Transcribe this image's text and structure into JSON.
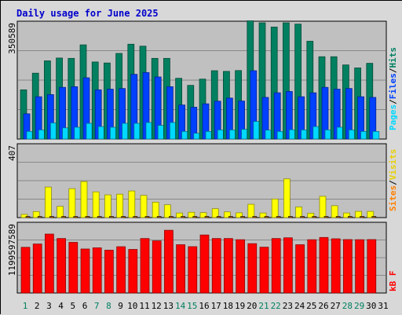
{
  "chart_data": [
    {
      "type": "bar",
      "title": "Daily usage for June 2025",
      "panel": "top",
      "axis_max_label": "350589",
      "ylim": [
        0,
        350589
      ],
      "grid": true,
      "categories": [
        "1",
        "2",
        "3",
        "4",
        "5",
        "6",
        "7",
        "8",
        "9",
        "10",
        "11",
        "12",
        "13",
        "14",
        "15",
        "16",
        "17",
        "18",
        "19",
        "20",
        "21",
        "22",
        "23",
        "24",
        "25",
        "26",
        "27",
        "28",
        "29",
        "30",
        "31"
      ],
      "series": [
        {
          "name": "Pages",
          "values": [
            23000,
            27600,
            48900,
            33900,
            35800,
            47600,
            37800,
            35800,
            47600,
            47600,
            50200,
            41400,
            50200,
            23000,
            17500,
            23000,
            27600,
            27600,
            29500,
            53300,
            27000,
            23000,
            28200,
            27600,
            37800,
            27600,
            35800,
            27600,
            23000,
            23000,
            0
          ]
        },
        {
          "name": "Files",
          "values": [
            76700,
            128500,
            135000,
            157000,
            159000,
            186000,
            149500,
            151500,
            153500,
            196500,
            202000,
            188500,
            159000,
            103500,
            96700,
            107000,
            115000,
            124500,
            115500,
            207500,
            126500,
            140500,
            144500,
            128500,
            140500,
            157000,
            151500,
            153500,
            128500,
            126500,
            0
          ]
        },
        {
          "name": "Hits",
          "values": [
            149500,
            200000,
            237500,
            246000,
            245000,
            286000,
            234000,
            231000,
            260000,
            288000,
            282000,
            245000,
            245000,
            184500,
            163000,
            182000,
            207500,
            205500,
            208000,
            359000,
            353000,
            340000,
            353000,
            349000,
            297000,
            250000,
            250000,
            225000,
            216000,
            230000,
            0
          ]
        }
      ],
      "legend": [
        "Pages",
        "Files",
        "Hits"
      ],
      "colors": {
        "Pages": "#00d8ff",
        "Files": "#0040ff",
        "Hits": "#008060"
      }
    },
    {
      "type": "bar",
      "panel": "middle",
      "axis_max_label": "407",
      "ylim": [
        0,
        407
      ],
      "grid": true,
      "categories": [
        "1",
        "2",
        "3",
        "4",
        "5",
        "6",
        "7",
        "8",
        "9",
        "10",
        "11",
        "12",
        "13",
        "14",
        "15",
        "16",
        "17",
        "18",
        "19",
        "20",
        "21",
        "22",
        "23",
        "24",
        "25",
        "26",
        "27",
        "28",
        "29",
        "30",
        "31"
      ],
      "series": [
        {
          "name": "Sites",
          "values": [
            6,
            6,
            6,
            6,
            6,
            6,
            6,
            6,
            6,
            6,
            6,
            6,
            6,
            6,
            6,
            6,
            6,
            6,
            6,
            6,
            6,
            6,
            6,
            6,
            6,
            6,
            6,
            6,
            6,
            6,
            0
          ]
        },
        {
          "name": "Visits",
          "values": [
            18,
            34,
            172,
            63,
            163,
            203,
            145,
            128,
            132,
            150,
            125,
            87,
            72,
            26,
            30,
            28,
            50,
            32,
            27,
            75,
            26,
            105,
            218,
            60,
            25,
            120,
            67,
            26,
            35,
            35,
            0
          ]
        }
      ],
      "legend": [
        "Sites",
        "Visits"
      ],
      "colors": {
        "Sites": "#ff8000",
        "Visits": "#ffff00"
      }
    },
    {
      "type": "bar",
      "panel": "bottom",
      "axis_max_label": "1199597589",
      "ylim": [
        0,
        1199597589
      ],
      "grid": true,
      "categories": [
        "1",
        "2",
        "3",
        "4",
        "5",
        "6",
        "7",
        "8",
        "9",
        "10",
        "11",
        "12",
        "13",
        "14",
        "15",
        "16",
        "17",
        "18",
        "19",
        "20",
        "21",
        "22",
        "23",
        "24",
        "25",
        "26",
        "27",
        "28",
        "29",
        "30",
        "31"
      ],
      "series": [
        {
          "name": "kB F",
          "values": [
            776000000,
            832000000,
            1000000000,
            925000000,
            860000000,
            747000000,
            767000000,
            727000000,
            786000000,
            740000000,
            925000000,
            885000000,
            1065000000,
            820000000,
            787000000,
            985000000,
            925000000,
            925000000,
            905000000,
            838000000,
            778000000,
            925000000,
            937000000,
            820000000,
            905000000,
            943000000,
            920000000,
            907000000,
            905000000,
            907000000,
            0
          ]
        }
      ],
      "legend": [
        "kB F"
      ],
      "colors": {
        "kB F": "#ff0000"
      }
    }
  ],
  "legend_colors": {
    "sep": "#000000"
  },
  "x_tick_colors": {
    "weekend": "#008060",
    "weekday": "#000000"
  },
  "weekend_days": [
    1,
    7,
    8,
    14,
    15,
    21,
    22,
    28,
    29
  ]
}
